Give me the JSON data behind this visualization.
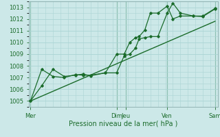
{
  "background_color": "#cce8e8",
  "grid_color": "#aad4d4",
  "line_color": "#1a6b2a",
  "xlabel": "Pression niveau de la mer( hPa )",
  "ylim": [
    1004.5,
    1013.5
  ],
  "yticks": [
    1005,
    1006,
    1007,
    1008,
    1009,
    1010,
    1011,
    1012,
    1013
  ],
  "vline_x": [
    0.0,
    0.46,
    0.51,
    0.73,
    0.985
  ],
  "xtick_positions": [
    0.0,
    0.46,
    0.51,
    0.73,
    0.985
  ],
  "xtick_labels": [
    "Mer",
    "Dim",
    "Jeu",
    "Ven",
    "Sam"
  ],
  "series1_x": [
    0.0,
    0.06,
    0.12,
    0.18,
    0.24,
    0.28,
    0.32,
    0.4,
    0.46,
    0.5,
    0.53,
    0.56,
    0.58,
    0.61,
    0.64,
    0.68,
    0.73,
    0.76,
    0.8,
    0.87,
    0.92,
    0.985
  ],
  "series1_y": [
    1005.0,
    1006.3,
    1007.7,
    1007.1,
    1007.2,
    1007.3,
    1007.15,
    1007.4,
    1007.4,
    1008.85,
    1009.0,
    1009.5,
    1010.3,
    1010.4,
    1010.5,
    1010.5,
    1012.5,
    1013.35,
    1012.5,
    1012.25,
    1012.2,
    1012.85
  ],
  "series2_x": [
    0.0,
    0.06,
    0.12,
    0.18,
    0.24,
    0.28,
    0.32,
    0.4,
    0.46,
    0.5,
    0.53,
    0.56,
    0.58,
    0.61,
    0.64,
    0.68,
    0.73,
    0.76,
    0.8,
    0.87,
    0.92,
    0.985
  ],
  "series2_y": [
    1005.0,
    1007.7,
    1007.1,
    1007.0,
    1007.25,
    1007.2,
    1007.2,
    1007.4,
    1009.0,
    1009.0,
    1010.0,
    1010.4,
    1010.5,
    1011.05,
    1012.5,
    1012.5,
    1013.1,
    1012.0,
    1012.25,
    1012.25,
    1012.25,
    1012.9
  ],
  "trend_x": [
    0.0,
    0.985
  ],
  "trend_y": [
    1005.0,
    1011.8
  ]
}
